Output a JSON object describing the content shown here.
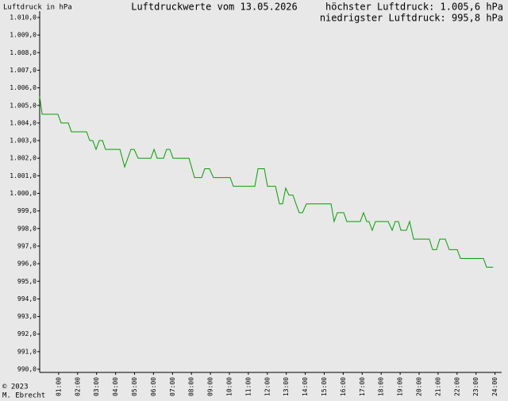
{
  "chart_data": {
    "type": "line",
    "title": "Luftdruckwerte vom 13.05.2026",
    "ylabel": "Luftdruck in hPa",
    "annotations": [
      "höchster Luftdruck: 1.005,6 hPa",
      "niedrigster Luftdruck: 995,8 hPa"
    ],
    "footer": [
      "© 2023",
      "M. Ebrecht"
    ],
    "x": [
      0,
      0.13,
      0.96,
      1.13,
      1.51,
      1.67,
      2.47,
      2.64,
      2.8,
      2.97,
      3.14,
      3.31,
      3.47,
      4.23,
      4.48,
      4.81,
      4.98,
      5.19,
      5.86,
      6.03,
      6.19,
      6.53,
      6.69,
      6.86,
      7.03,
      7.87,
      8.16,
      8.54,
      8.7,
      8.95,
      9.16,
      10.04,
      10.21,
      11.34,
      11.51,
      11.84,
      12.01,
      12.43,
      12.64,
      12.8,
      12.97,
      13.14,
      13.35,
      13.51,
      13.68,
      13.85,
      14.06,
      15.36,
      15.52,
      15.69,
      16.03,
      16.19,
      16.9,
      17.07,
      17.24,
      17.36,
      17.53,
      17.7,
      18.37,
      18.58,
      18.74,
      18.91,
      19.04,
      19.33,
      19.5,
      19.71,
      20.54,
      20.71,
      20.92,
      21.09,
      21.38,
      21.59,
      22.01,
      22.18,
      23.39,
      23.56,
      23.9
    ],
    "series": [
      {
        "color": "#00a000",
        "values": [
          1005.5,
          1004.5,
          1004.5,
          1004.0,
          1004.0,
          1003.5,
          1003.5,
          1003.0,
          1003.0,
          1002.5,
          1003.0,
          1003.0,
          1002.5,
          1002.5,
          1001.5,
          1002.5,
          1002.5,
          1002.0,
          1002.0,
          1002.5,
          1002.0,
          1002.0,
          1002.5,
          1002.5,
          1002.0,
          1002.0,
          1000.9,
          1000.9,
          1001.4,
          1001.4,
          1000.9,
          1000.9,
          1000.4,
          1000.4,
          1001.4,
          1001.4,
          1000.4,
          1000.4,
          999.4,
          999.4,
          1000.3,
          999.9,
          999.9,
          999.4,
          998.9,
          998.9,
          999.4,
          999.4,
          998.4,
          998.9,
          998.9,
          998.4,
          998.4,
          998.9,
          998.4,
          998.4,
          997.9,
          998.4,
          998.4,
          997.9,
          998.4,
          998.4,
          997.9,
          997.9,
          998.4,
          997.4,
          997.4,
          996.8,
          996.8,
          997.4,
          997.4,
          996.8,
          996.8,
          996.3,
          996.3,
          995.8,
          995.8
        ]
      }
    ],
    "xlim": [
      0,
      24
    ],
    "xticks": [
      {
        "value": 1,
        "label": "01:00"
      },
      {
        "value": 2,
        "label": "02:00"
      },
      {
        "value": 3,
        "label": "03:00"
      },
      {
        "value": 4,
        "label": "04:00"
      },
      {
        "value": 5,
        "label": "05:00"
      },
      {
        "value": 6,
        "label": "06:00"
      },
      {
        "value": 7,
        "label": "07:00"
      },
      {
        "value": 8,
        "label": "08:00"
      },
      {
        "value": 9,
        "label": "09:00"
      },
      {
        "value": 10,
        "label": "10:00"
      },
      {
        "value": 11,
        "label": "11:00"
      },
      {
        "value": 12,
        "label": "12:00"
      },
      {
        "value": 13,
        "label": "13:00"
      },
      {
        "value": 14,
        "label": "14:00"
      },
      {
        "value": 15,
        "label": "15:00"
      },
      {
        "value": 16,
        "label": "16:00"
      },
      {
        "value": 17,
        "label": "17:00"
      },
      {
        "value": 18,
        "label": "18:00"
      },
      {
        "value": 19,
        "label": "19:00"
      },
      {
        "value": 20,
        "label": "20:00"
      },
      {
        "value": 21,
        "label": "21:00"
      },
      {
        "value": 22,
        "label": "22:00"
      },
      {
        "value": 23,
        "label": "23:00"
      },
      {
        "value": 24,
        "label": "24:00"
      }
    ],
    "ylim": [
      990,
      1010
    ],
    "yticks": [
      {
        "value": 990,
        "label": "990,0"
      },
      {
        "value": 991,
        "label": "991,0"
      },
      {
        "value": 992,
        "label": "992,0"
      },
      {
        "value": 993,
        "label": "993,0"
      },
      {
        "value": 994,
        "label": "994,0"
      },
      {
        "value": 995,
        "label": "995,0"
      },
      {
        "value": 996,
        "label": "996,0"
      },
      {
        "value": 997,
        "label": "997,0"
      },
      {
        "value": 998,
        "label": "998,0"
      },
      {
        "value": 999,
        "label": "999,0"
      },
      {
        "value": 1000,
        "label": "1.000,0"
      },
      {
        "value": 1001,
        "label": "1.001,0"
      },
      {
        "value": 1002,
        "label": "1.002,0"
      },
      {
        "value": 1003,
        "label": "1.003,0"
      },
      {
        "value": 1004,
        "label": "1.004,0"
      },
      {
        "value": 1005,
        "label": "1.005,0"
      },
      {
        "value": 1006,
        "label": "1.006,0"
      },
      {
        "value": 1007,
        "label": "1.007,0"
      },
      {
        "value": 1008,
        "label": "1.008,0"
      },
      {
        "value": 1009,
        "label": "1.009,0"
      },
      {
        "value": 1010,
        "label": "1.010,0"
      }
    ],
    "grid": false
  }
}
